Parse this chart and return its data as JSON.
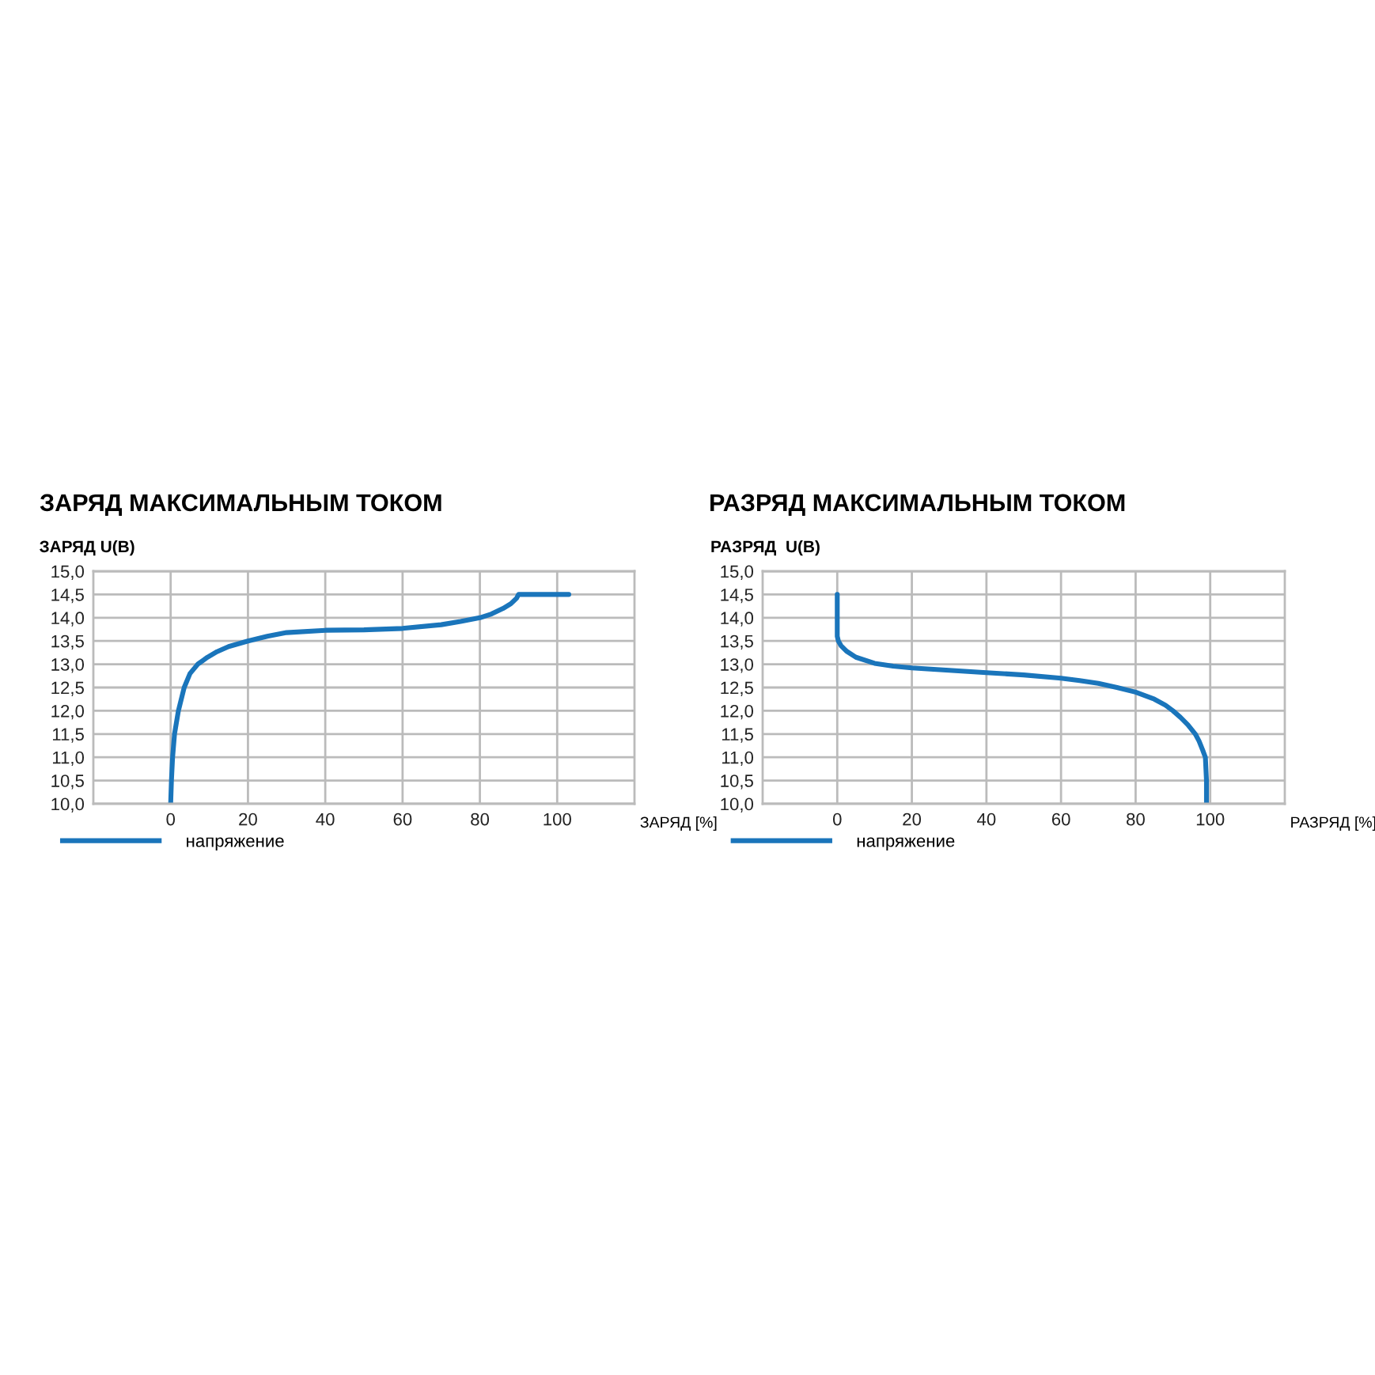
{
  "chart_data": [
    {
      "type": "line",
      "title": "ЗАРЯД МАКСИМАЛЬНЫМ ТОКОМ",
      "xlabel": "ЗАРЯД [%]",
      "ylabel": "ЗАРЯД U(B)",
      "xlim": [
        -20,
        120
      ],
      "ylim": [
        10,
        15
      ],
      "xticks": [
        0,
        20,
        40,
        60,
        80,
        100
      ],
      "yticks": [
        {
          "value": 10,
          "label": "10,0"
        },
        {
          "value": 10.5,
          "label": "10,5"
        },
        {
          "value": 11,
          "label": "11,0"
        },
        {
          "value": 11.5,
          "label": "11,5"
        },
        {
          "value": 12,
          "label": "12,0"
        },
        {
          "value": 12.5,
          "label": "12,5"
        },
        {
          "value": 13,
          "label": "13,0"
        },
        {
          "value": 13.5,
          "label": "13,5"
        },
        {
          "value": 14,
          "label": "14,0"
        },
        {
          "value": 14.5,
          "label": "14,5"
        },
        {
          "value": 15,
          "label": "15,0"
        }
      ],
      "grid": true,
      "legend": "bottom left",
      "series": [
        {
          "name": "напряжение",
          "color": "#1a75bb",
          "x": [
            0,
            0.2,
            0.5,
            1,
            2,
            3.5,
            5,
            7,
            9.5,
            12,
            15,
            20,
            25,
            30,
            40,
            50,
            60,
            70,
            75,
            80,
            83,
            86,
            88,
            89.5,
            90,
            103
          ],
          "values": [
            10.0,
            10.5,
            11.0,
            11.5,
            12.0,
            12.5,
            12.8,
            13.0,
            13.15,
            13.27,
            13.38,
            13.5,
            13.6,
            13.68,
            13.73,
            13.74,
            13.77,
            13.85,
            13.92,
            14.0,
            14.08,
            14.2,
            14.3,
            14.42,
            14.5,
            14.5
          ]
        }
      ]
    },
    {
      "type": "line",
      "title": "РАЗРЯД МАКСИМАЛЬНЫМ ТОКОМ",
      "xlabel": "РАЗРЯД [%]",
      "ylabel": "РАЗРЯД  U(B)",
      "xlim": [
        -20,
        120
      ],
      "ylim": [
        10,
        15
      ],
      "xticks": [
        0,
        20,
        40,
        60,
        80,
        100
      ],
      "yticks": [
        {
          "value": 10,
          "label": "10,0"
        },
        {
          "value": 10.5,
          "label": "10,5"
        },
        {
          "value": 11,
          "label": "11,0"
        },
        {
          "value": 11.5,
          "label": "11,5"
        },
        {
          "value": 12,
          "label": "12,0"
        },
        {
          "value": 12.5,
          "label": "12,5"
        },
        {
          "value": 13,
          "label": "13,0"
        },
        {
          "value": 13.5,
          "label": "13,5"
        },
        {
          "value": 14,
          "label": "14,0"
        },
        {
          "value": 14.5,
          "label": "14,5"
        },
        {
          "value": 15,
          "label": "15,0"
        }
      ],
      "grid": true,
      "legend": "bottom left",
      "series": [
        {
          "name": "напряжение",
          "color": "#1a75bb",
          "x": [
            0,
            0,
            0.3,
            1,
            2.5,
            5,
            10,
            15,
            20,
            30,
            40,
            50,
            60,
            65,
            70,
            75,
            80,
            85,
            88,
            90,
            92,
            94,
            96,
            97,
            98,
            98.7,
            99,
            99
          ],
          "values": [
            14.5,
            13.6,
            13.5,
            13.4,
            13.28,
            13.15,
            13.02,
            12.96,
            12.92,
            12.87,
            12.82,
            12.77,
            12.7,
            12.65,
            12.59,
            12.5,
            12.4,
            12.25,
            12.12,
            12.0,
            11.86,
            11.7,
            11.5,
            11.35,
            11.15,
            11.0,
            10.5,
            10.0
          ]
        }
      ]
    }
  ]
}
